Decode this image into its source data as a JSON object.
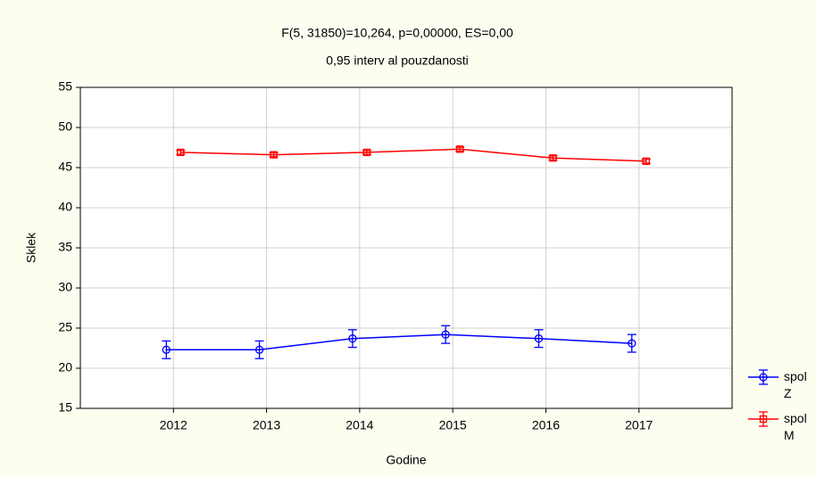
{
  "chart_data": {
    "type": "line",
    "title": "F(5, 31850)=10,264, p=0,00000, ES=0,00",
    "subtitle": "0,95 interv al pouzdanosti",
    "xlabel": "Godine",
    "ylabel": "Sklek",
    "categories": [
      "2012",
      "2013",
      "2014",
      "2015",
      "2016",
      "2017"
    ],
    "series": [
      {
        "name": "spol Z",
        "color": "#0000ff",
        "values": [
          22.3,
          22.3,
          23.7,
          24.2,
          23.7,
          23.1
        ],
        "errors": [
          1.1,
          1.1,
          1.1,
          1.1,
          1.1,
          1.1
        ]
      },
      {
        "name": "spol M",
        "color": "#ff0000",
        "values": [
          46.9,
          46.6,
          46.9,
          47.3,
          46.2,
          45.8
        ],
        "errors": [
          0.25,
          0.25,
          0.25,
          0.25,
          0.25,
          0.25
        ]
      }
    ],
    "ylim": [
      15,
      55
    ],
    "yticks": [
      15,
      20,
      25,
      30,
      35,
      40,
      45,
      50,
      55
    ],
    "grid": true
  }
}
